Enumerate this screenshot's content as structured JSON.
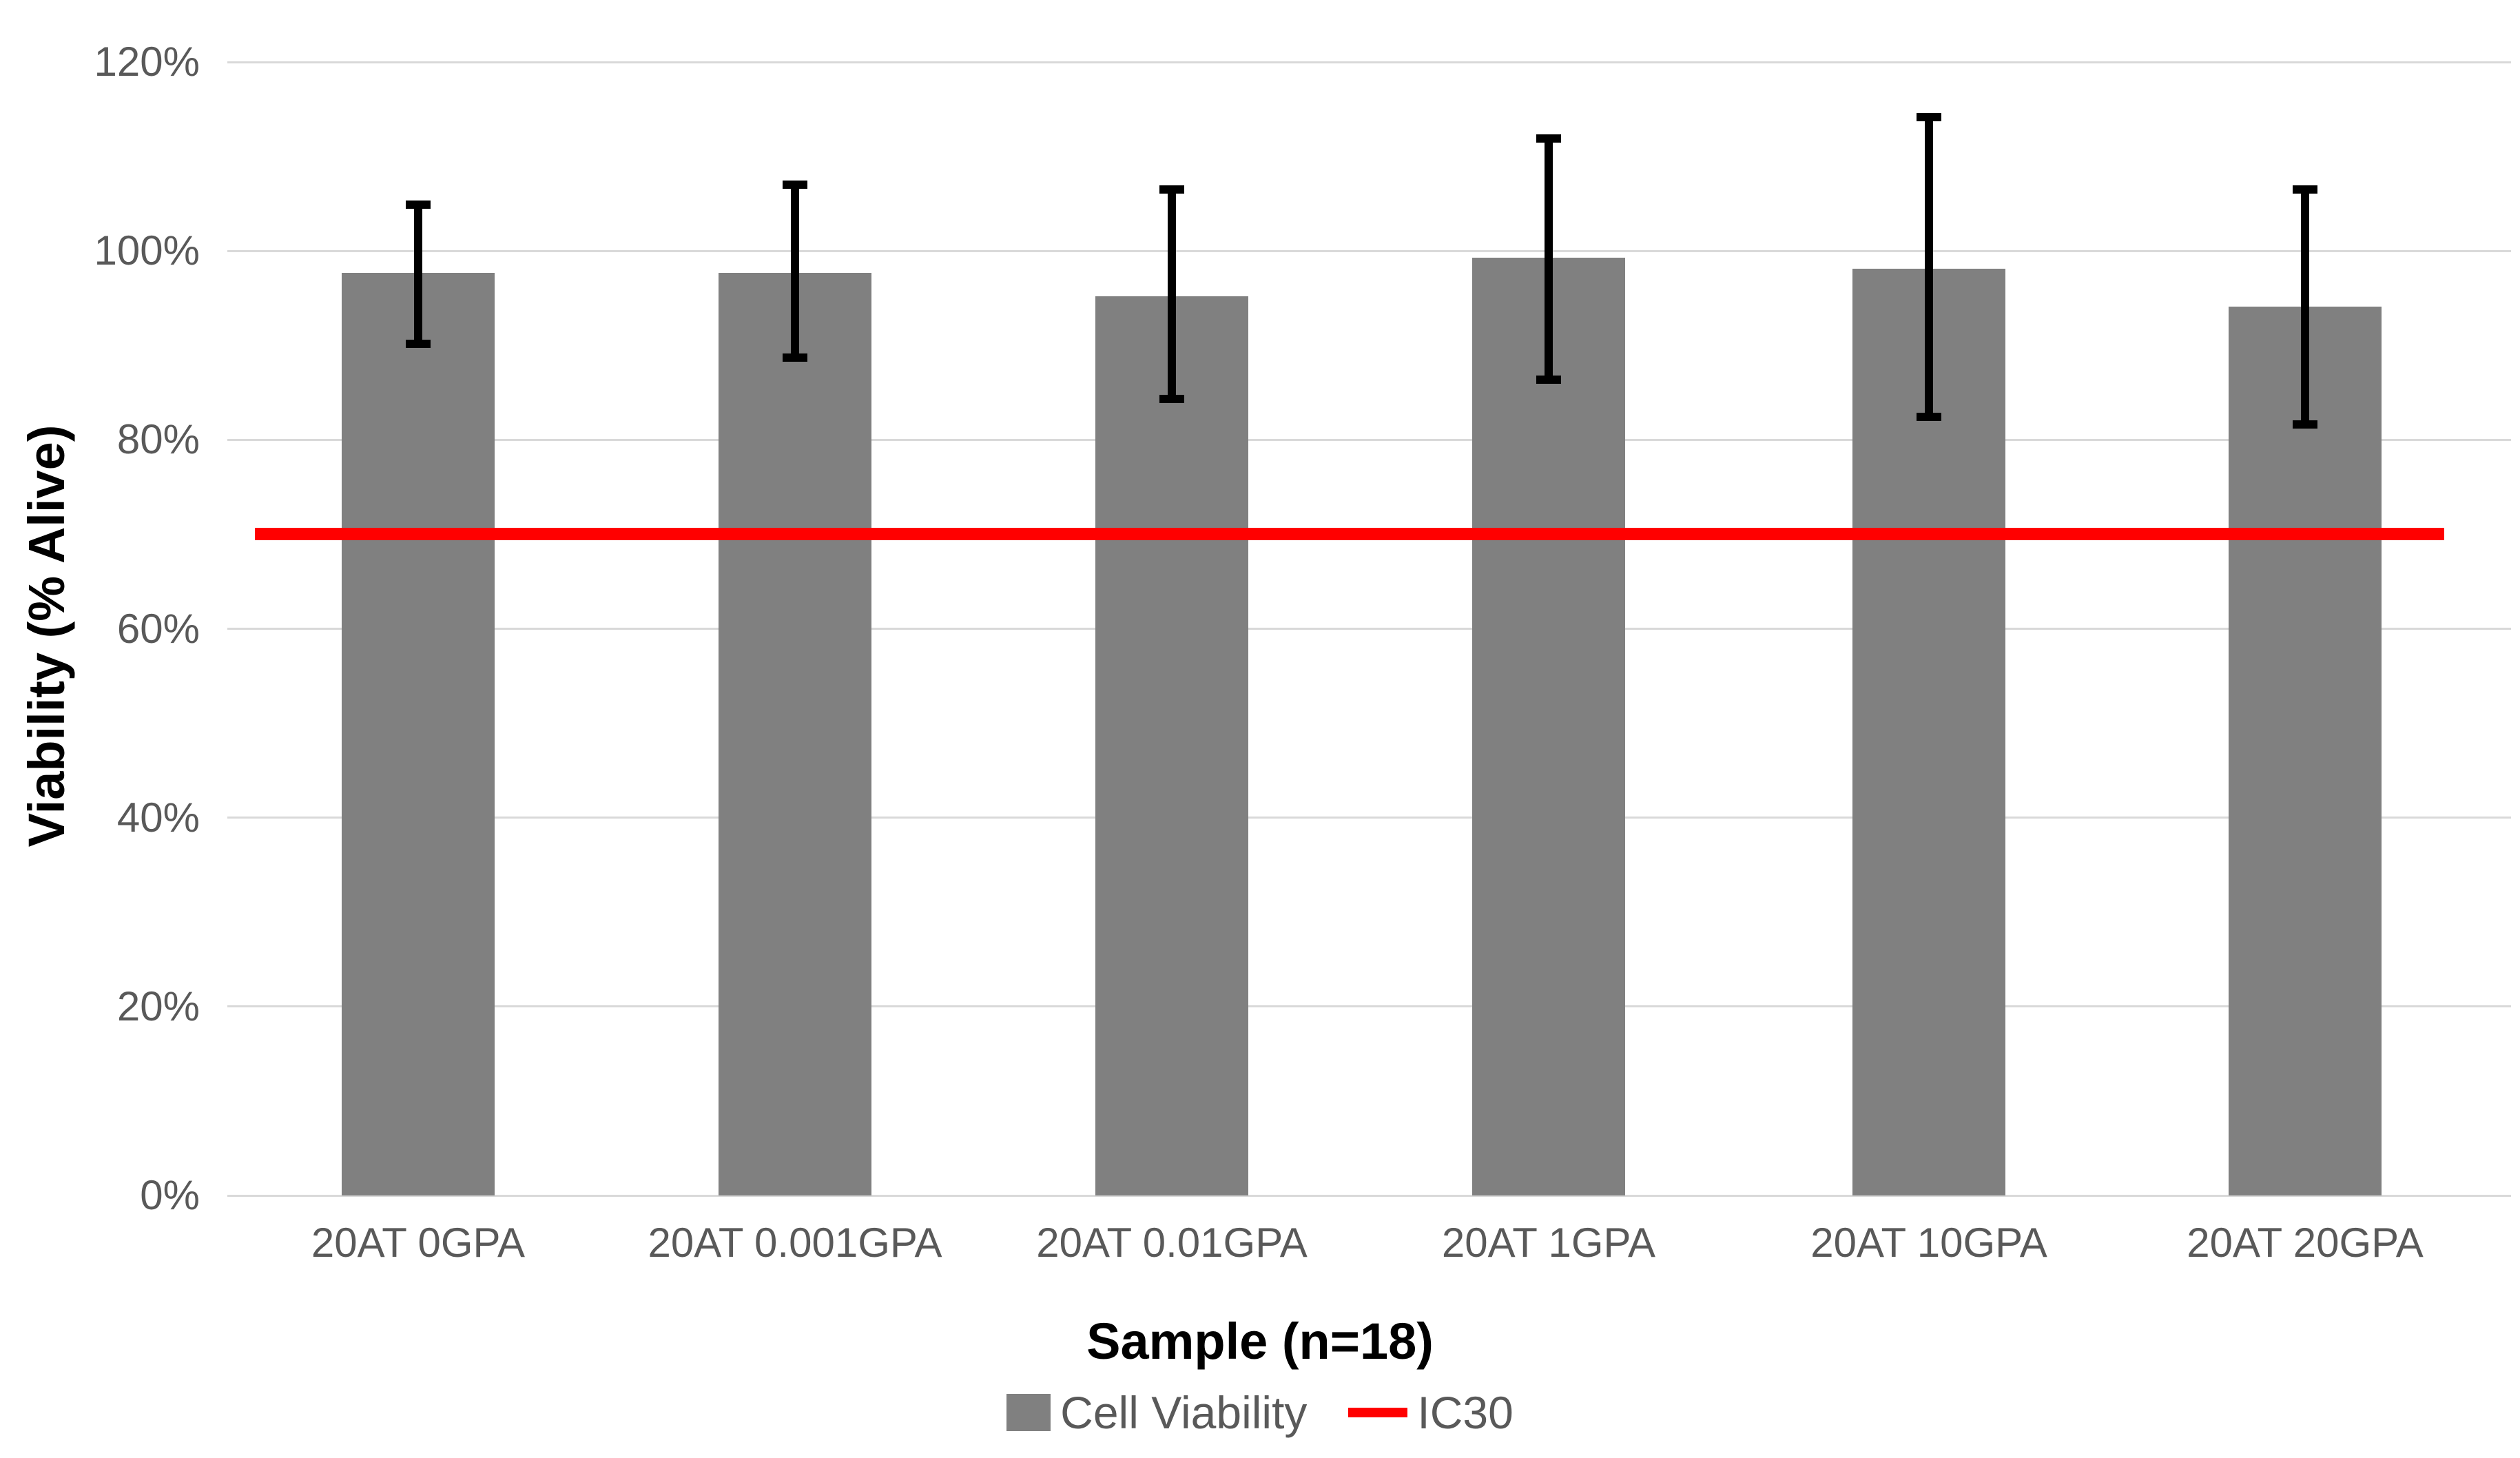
{
  "chart_data": {
    "type": "bar",
    "title": "",
    "xlabel": "Sample (n=18)",
    "ylabel": "Viability (% Alive)",
    "categories": [
      "20AT 0GPA",
      "20AT 0.001GPA",
      "20AT 0.01GPA",
      "20AT 1GPA",
      "20AT 10GPA",
      "20AT 20GPA"
    ],
    "series": [
      {
        "name": "Cell Viability",
        "type": "bar",
        "color": "#808080",
        "values": [
          97.7,
          97.7,
          95.2,
          99.3,
          98.1,
          94.1
        ],
        "error_high": [
          104.9,
          107.0,
          106.5,
          111.9,
          114.2,
          106.5
        ],
        "error_low": [
          90.2,
          88.7,
          84.3,
          86.4,
          82.4,
          81.6
        ]
      },
      {
        "name": "IC30",
        "type": "hline",
        "color": "#FF0000",
        "value": 70
      }
    ],
    "ylim": [
      0,
      120
    ],
    "yticks": [
      0,
      20,
      40,
      60,
      80,
      100,
      120
    ],
    "ytick_suffix": "%",
    "grid": true,
    "legend_position": "bottom"
  },
  "axes": {
    "y_title": "Viability (% Alive)",
    "x_title": "Sample (n=18)"
  },
  "legend": {
    "items": [
      {
        "label": "Cell Viability",
        "swatch": "rect",
        "color": "#808080"
      },
      {
        "label": "IC30",
        "swatch": "line",
        "color": "#FF0000"
      }
    ]
  },
  "colors": {
    "bar": "#808080",
    "error_bar": "#000000",
    "ic30_line": "#FF0000",
    "gridline": "#D9D9D9",
    "tick_text": "#595959",
    "axis_title_text": "#000000",
    "background": "#FFFFFF"
  }
}
